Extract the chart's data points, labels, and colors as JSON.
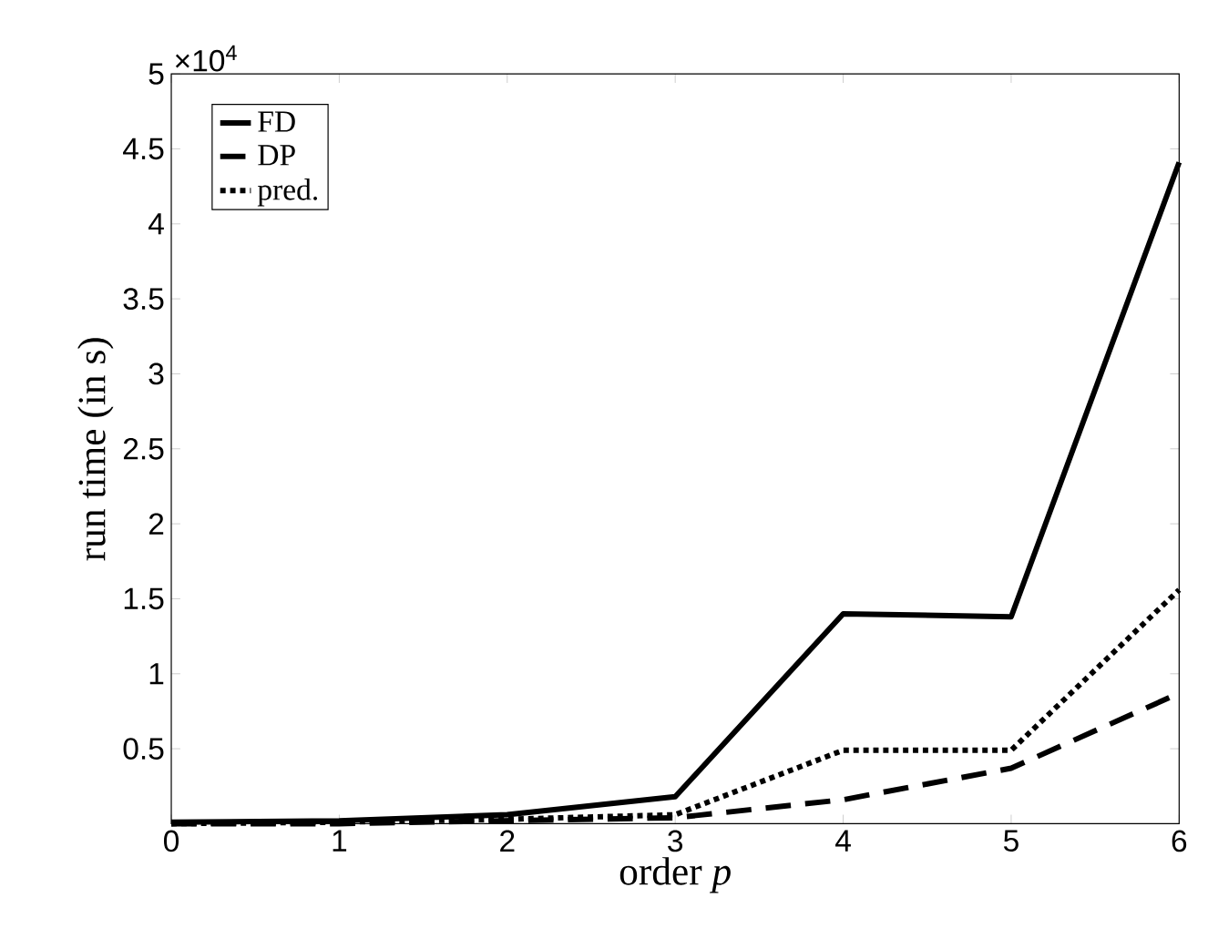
{
  "chart_data": {
    "type": "line",
    "xlabel": "order *p*",
    "ylabel": "run time (in s)",
    "x": [
      0,
      1,
      2,
      3,
      4,
      5,
      6
    ],
    "series": [
      {
        "name": "FD",
        "color": "#000000",
        "line_style": "solid",
        "values": [
          0.01,
          0.02,
          0.06,
          0.18,
          1.4,
          1.38,
          4.41
        ]
      },
      {
        "name": "DP",
        "color": "#000000",
        "line_style": "dashed",
        "values": [
          0,
          0,
          0.02,
          0.04,
          0.16,
          0.37,
          0.87
        ]
      },
      {
        "name": "pred.",
        "color": "#000000",
        "line_style": "dotted",
        "values": [
          0,
          0.01,
          0.03,
          0.06,
          0.49,
          0.49,
          1.56
        ]
      }
    ],
    "xlim": [
      0,
      6
    ],
    "xticks": [
      0,
      1,
      2,
      3,
      4,
      5,
      6
    ],
    "ylim": [
      0,
      5
    ],
    "yticks": [
      0.5,
      1,
      1.5,
      2,
      2.5,
      3,
      3.5,
      4,
      4.5,
      5
    ],
    "annotations": [
      "×10$^{4}$"
    ],
    "legend": "top left",
    "marker": "none",
    "grid": false
  }
}
